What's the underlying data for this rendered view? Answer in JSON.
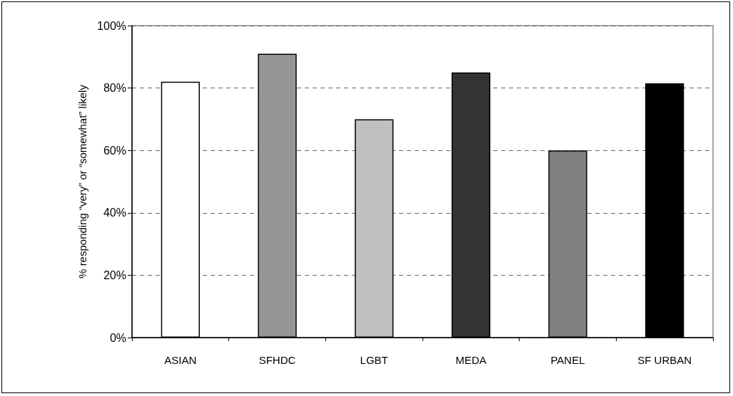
{
  "chart_data": {
    "type": "bar",
    "ylabel": "% responding “very” or “somewhat” likely",
    "categories": [
      "ASIAN",
      "SFHDC",
      "LGBT",
      "MEDA",
      "PANEL",
      "SF URBAN"
    ],
    "values": [
      82,
      91,
      70,
      85,
      60,
      81.5
    ],
    "colors": [
      "#ffffff",
      "#969696",
      "#c0c0c0",
      "#333333",
      "#808080",
      "#000000"
    ],
    "ylim": [
      0,
      100
    ],
    "yticks": [
      {
        "value": 0,
        "label": "0%"
      },
      {
        "value": 20,
        "label": "20%"
      },
      {
        "value": 40,
        "label": "40%"
      },
      {
        "value": 60,
        "label": "60%"
      },
      {
        "value": 80,
        "label": "80%"
      },
      {
        "value": 100,
        "label": "100%"
      }
    ],
    "grid": "y"
  }
}
